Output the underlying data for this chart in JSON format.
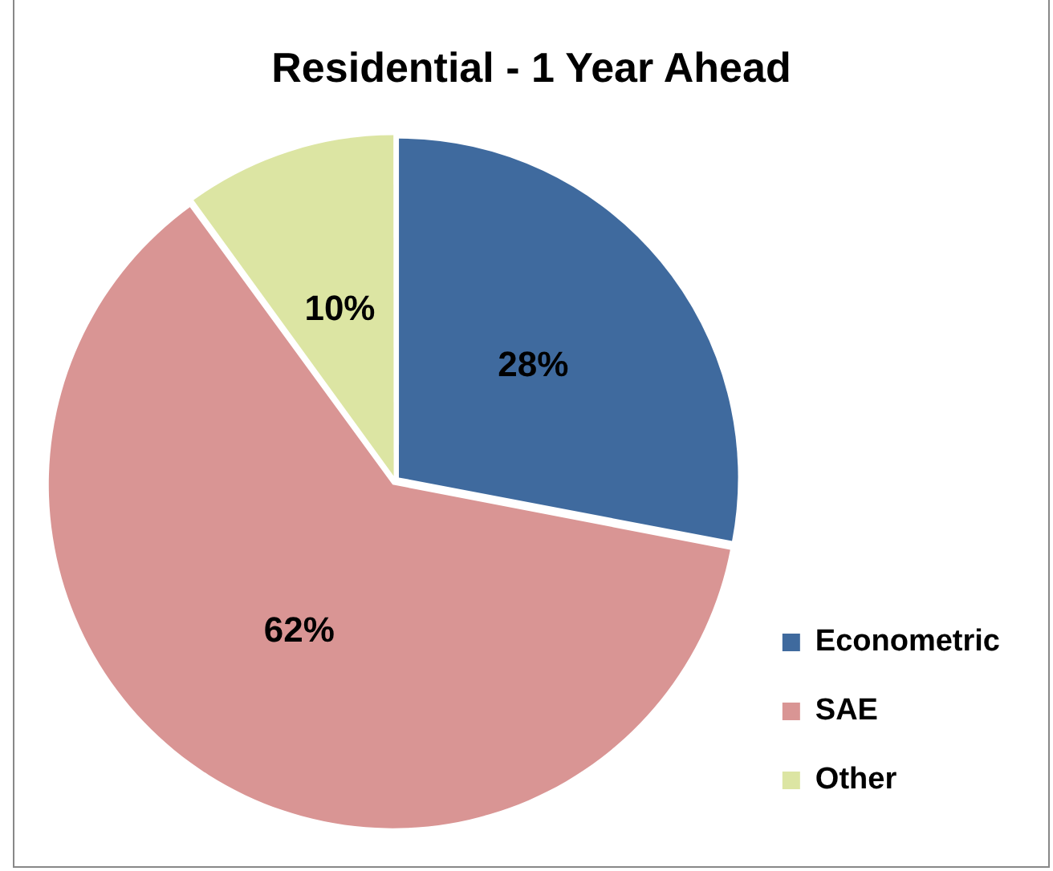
{
  "chart_data": {
    "type": "pie",
    "title": "Residential - 1 Year Ahead",
    "categories": [
      "Econometric",
      "SAE",
      "Other"
    ],
    "values": [
      28,
      62,
      10
    ],
    "colors": [
      "#3f6a9e",
      "#d99594",
      "#dce5a3"
    ],
    "value_labels": [
      "28%",
      "62%",
      "10%"
    ],
    "legend": "right"
  }
}
